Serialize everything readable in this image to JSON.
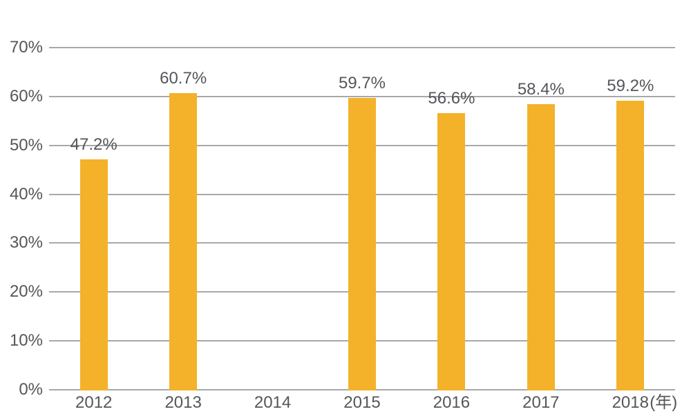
{
  "chart_data": {
    "type": "bar",
    "title": "",
    "categories": [
      "2012",
      "2013",
      "2014",
      "2015",
      "2016",
      "2017",
      "2018"
    ],
    "x_axis_unit_suffix": "(年)",
    "x_axis_unit_suffix_index": 6,
    "values": [
      47.2,
      60.7,
      null,
      59.7,
      56.6,
      58.4,
      59.2
    ],
    "value_labels": [
      "47.2%",
      "60.7%",
      null,
      "59.7%",
      "56.6%",
      "58.4%",
      "59.2%"
    ],
    "xlabel": "",
    "ylabel": "",
    "ylim": [
      0,
      70
    ],
    "yticks": [
      0,
      10,
      20,
      30,
      40,
      50,
      60,
      70
    ],
    "ytick_labels": [
      "0%",
      "10%",
      "20%",
      "30%",
      "40%",
      "50%",
      "60%",
      "70%"
    ],
    "grid": "horizontal",
    "legend_position": "none",
    "colors": {
      "bar": "#F3B229",
      "text": "#54565B",
      "gridline": "#A8A8A8",
      "axis_line": "#A8A8A8",
      "background": "#FFFFFF"
    }
  }
}
